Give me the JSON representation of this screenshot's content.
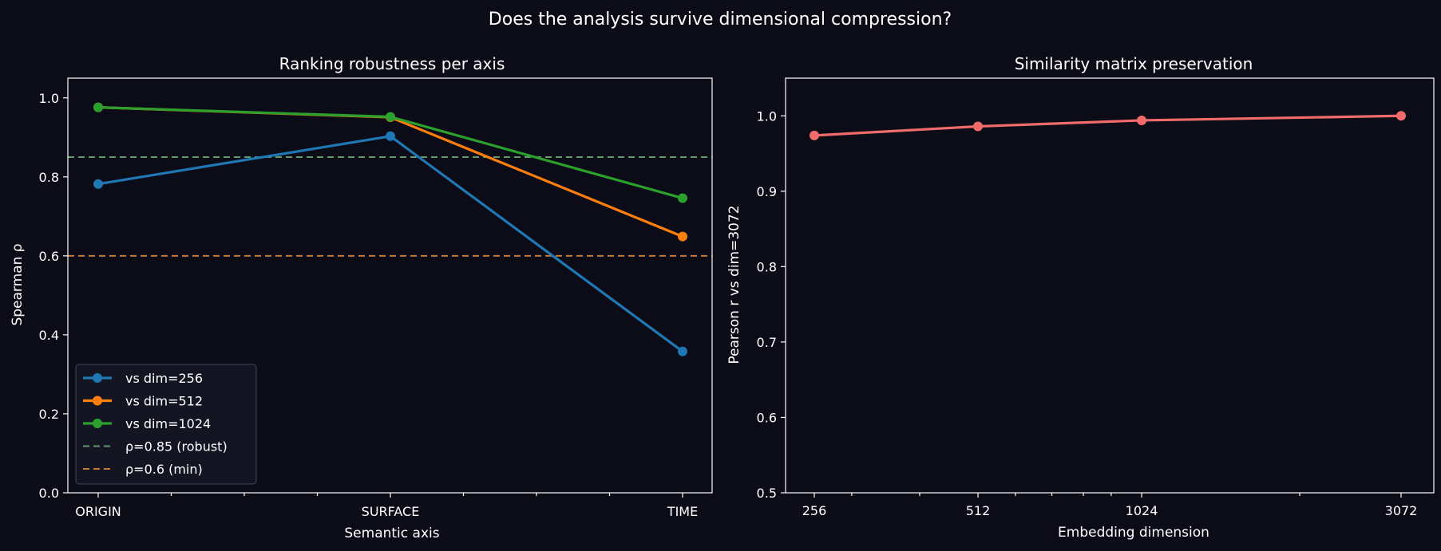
{
  "figure": {
    "suptitle": "Does the analysis survive dimensional compression?",
    "background": "#0b0c17"
  },
  "chart_data": [
    {
      "type": "line",
      "title": "Ranking robustness per axis",
      "xlabel": "Semantic axis",
      "ylabel": "Spearman ρ",
      "categories": [
        "ORIGIN",
        "SURFACE",
        "TIME"
      ],
      "ylim": [
        0,
        1.05
      ],
      "yticks": [
        "0.0",
        "0.2",
        "0.4",
        "0.6",
        "0.8",
        "1.0"
      ],
      "grid": false,
      "legend_position": "lower-left",
      "series": [
        {
          "name": "vs dim=256",
          "color": "#1f77b4",
          "values": [
            0.782,
            0.903,
            0.358
          ]
        },
        {
          "name": "vs dim=512",
          "color": "#ff7f0e",
          "values": [
            0.976,
            0.951,
            0.649
          ]
        },
        {
          "name": "vs dim=1024",
          "color": "#2ca02c",
          "values": [
            0.976,
            0.952,
            0.746
          ]
        }
      ],
      "reference_lines": [
        {
          "name": "ρ=0.85 (robust)",
          "y": 0.85,
          "color": "#5f9a6b",
          "style": "dashed"
        },
        {
          "name": "ρ=0.6 (min)",
          "y": 0.6,
          "color": "#c47a3e",
          "style": "dashed"
        }
      ]
    },
    {
      "type": "line",
      "title": "Similarity matrix preservation",
      "xlabel": "Embedding dimension",
      "ylabel": "Pearson r vs dim=3072",
      "x_scale": "log",
      "x": [
        256,
        512,
        1024,
        3072
      ],
      "xticks": [
        "256",
        "512",
        "1024",
        "3072"
      ],
      "ylim": [
        0.5,
        1.05
      ],
      "yticks": [
        "0.5",
        "0.6",
        "0.7",
        "0.8",
        "0.9",
        "1.0"
      ],
      "grid": false,
      "series": [
        {
          "color": "#f26b6b",
          "values": [
            0.974,
            0.986,
            0.994,
            1.0
          ]
        }
      ]
    }
  ]
}
